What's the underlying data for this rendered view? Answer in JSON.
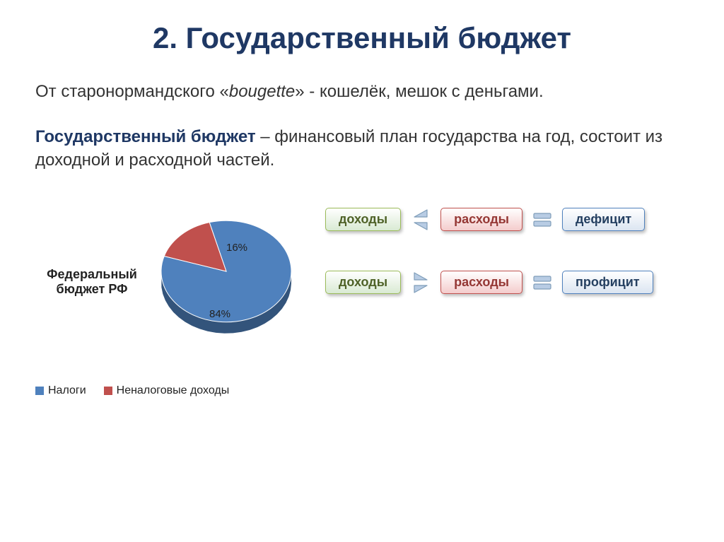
{
  "title": "2. Государственный бюджет",
  "etymology": {
    "prefix": "От старонормандского «",
    "italic_word": "bougette",
    "suffix": "» - кошелёк, мешок с деньгами."
  },
  "definition": {
    "term": "Государственный бюджет",
    "rest": " – финансовый план государства на год, состоит из доходной и расходной частей."
  },
  "pie": {
    "title": "Федеральный бюджет РФ",
    "slices": [
      {
        "label": "Налоги",
        "value": 84,
        "color": "#4f81bd",
        "label_text": "84%"
      },
      {
        "label": "Неналоговые доходы",
        "value": 16,
        "color": "#c0504d",
        "label_text": "16%"
      }
    ],
    "background": "#ffffff",
    "label_fontsize": 15,
    "title_fontsize": 18,
    "radius": 92,
    "thickness_3d": 16,
    "start_angle_deg": -105
  },
  "legend_items": [
    {
      "swatch": "#4f81bd",
      "text": "Налоги"
    },
    {
      "swatch": "#c0504d",
      "text": "Неналоговые доходы"
    }
  ],
  "rows": [
    {
      "income": "доходы",
      "compare": "lt",
      "expense": "расходы",
      "sep": "eq",
      "result": "дефицит"
    },
    {
      "income": "доходы",
      "compare": "gt",
      "expense": "расходы",
      "sep": "eq",
      "result": "профицит"
    }
  ],
  "colors": {
    "title": "#1f3864",
    "text": "#333333",
    "green_border": "#9bbb59",
    "red_border": "#c0504d",
    "blue_border": "#4f81bd",
    "symbol": "#7f9db9"
  }
}
